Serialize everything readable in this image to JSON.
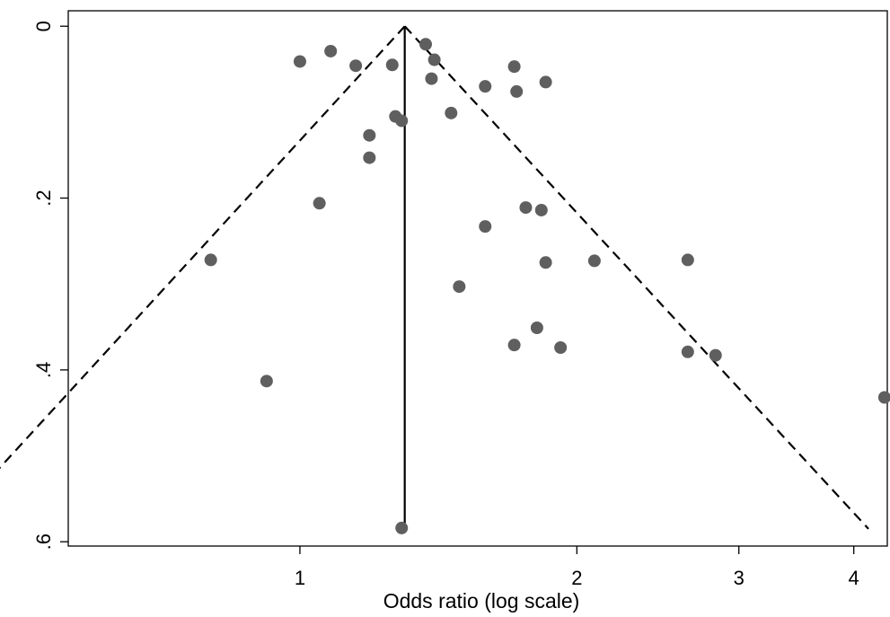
{
  "chart_data": {
    "type": "scatter",
    "title": "",
    "xlabel": "Odds ratio (log scale)",
    "ylabel": "",
    "x_scale": "log",
    "y_reversed": true,
    "xlim": [
      0.56,
      4.35
    ],
    "ylim": [
      -0.018,
      0.605
    ],
    "xticks": [
      1,
      2,
      3,
      4
    ],
    "xtick_labels": [
      "1",
      "2",
      "3",
      "4"
    ],
    "yticks": [
      0,
      0.2,
      0.4,
      0.6
    ],
    "ytick_labels": [
      "0",
      ".2",
      ".4",
      ".6"
    ],
    "grid": false,
    "legend": "none",
    "pooled_or": 1.3,
    "funnel_limits": {
      "apex": [
        1.3,
        0
      ],
      "left_base": [
        0.41,
        0.585
      ],
      "right_base": [
        4.15,
        0.585
      ]
    },
    "colors": {
      "points": "#5f5f5f",
      "lines": "#000000"
    },
    "points": [
      {
        "x": 1.37,
        "y": 0.021
      },
      {
        "x": 1.08,
        "y": 0.029
      },
      {
        "x": 1.0,
        "y": 0.041
      },
      {
        "x": 1.15,
        "y": 0.046
      },
      {
        "x": 1.26,
        "y": 0.045
      },
      {
        "x": 1.4,
        "y": 0.039
      },
      {
        "x": 1.71,
        "y": 0.047
      },
      {
        "x": 1.39,
        "y": 0.061
      },
      {
        "x": 1.59,
        "y": 0.07
      },
      {
        "x": 1.72,
        "y": 0.076
      },
      {
        "x": 1.85,
        "y": 0.065
      },
      {
        "x": 1.27,
        "y": 0.105
      },
      {
        "x": 1.29,
        "y": 0.11
      },
      {
        "x": 1.46,
        "y": 0.101
      },
      {
        "x": 1.19,
        "y": 0.127
      },
      {
        "x": 1.19,
        "y": 0.153
      },
      {
        "x": 1.05,
        "y": 0.206
      },
      {
        "x": 1.76,
        "y": 0.211
      },
      {
        "x": 1.83,
        "y": 0.214
      },
      {
        "x": 1.59,
        "y": 0.233
      },
      {
        "x": 0.8,
        "y": 0.272
      },
      {
        "x": 1.85,
        "y": 0.275
      },
      {
        "x": 2.09,
        "y": 0.273
      },
      {
        "x": 2.64,
        "y": 0.272
      },
      {
        "x": 1.49,
        "y": 0.303
      },
      {
        "x": 1.81,
        "y": 0.351
      },
      {
        "x": 1.71,
        "y": 0.371
      },
      {
        "x": 1.92,
        "y": 0.374
      },
      {
        "x": 2.64,
        "y": 0.379
      },
      {
        "x": 2.83,
        "y": 0.383
      },
      {
        "x": 0.92,
        "y": 0.413
      },
      {
        "x": 4.32,
        "y": 0.432
      },
      {
        "x": 1.29,
        "y": 0.584
      }
    ]
  }
}
